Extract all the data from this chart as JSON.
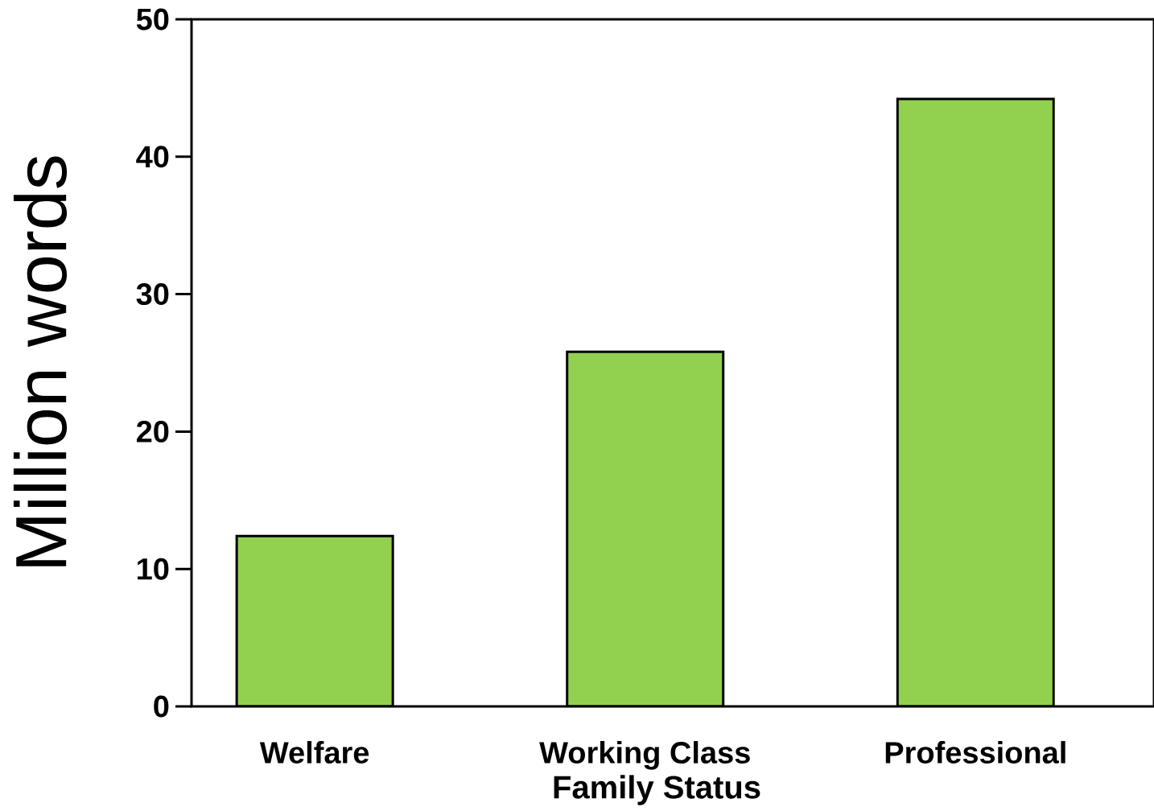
{
  "chart_data": {
    "type": "bar",
    "xlabel": "Family Status",
    "ylabel": "Million words",
    "categories": [
      "Welfare",
      "Working Class",
      "Professional"
    ],
    "values": [
      12.4,
      25.8,
      44.2
    ],
    "color": "#92d050",
    "ylim": [
      0,
      50
    ],
    "yticks": [
      0,
      10,
      20,
      30,
      40,
      50
    ]
  }
}
